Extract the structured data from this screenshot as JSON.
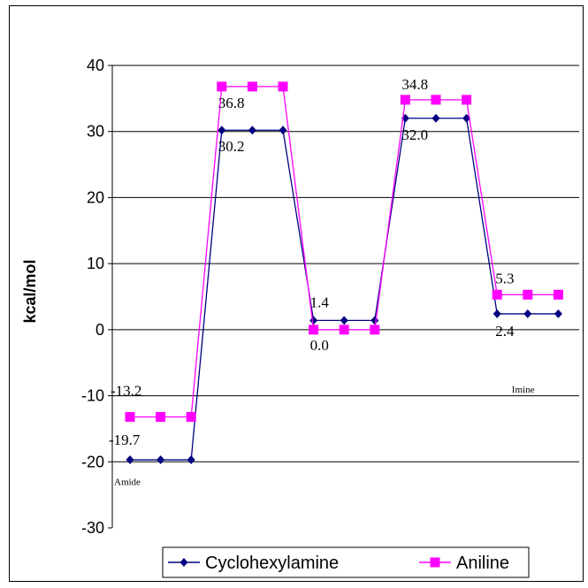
{
  "chart_data": {
    "type": "line",
    "title": "",
    "xlabel": "",
    "ylabel": "kcal/mol",
    "ylim": [
      -30,
      40
    ],
    "yticks": [
      40,
      30,
      20,
      10,
      0,
      -10,
      -20,
      -30
    ],
    "grid": true,
    "legend_position": "bottom",
    "x": [
      1,
      2,
      3,
      4,
      5,
      6,
      7,
      8,
      9,
      10,
      11,
      12,
      13,
      14,
      15
    ],
    "series": [
      {
        "name": "Cyclohexylamine",
        "color": "#000080",
        "marker": "diamond",
        "values": [
          -19.7,
          -19.7,
          -19.7,
          30.2,
          30.2,
          30.2,
          1.4,
          1.4,
          1.4,
          32.0,
          32.0,
          32.0,
          2.4,
          2.4,
          2.4
        ]
      },
      {
        "name": "Aniline",
        "color": "#ff00ff",
        "marker": "square",
        "values": [
          -13.2,
          -13.2,
          -13.2,
          36.8,
          36.8,
          36.8,
          0.0,
          0.0,
          0.0,
          34.8,
          34.8,
          34.8,
          5.3,
          5.3,
          5.3
        ]
      }
    ],
    "data_labels": [
      {
        "text": "-13.2",
        "x": 1,
        "y": -13.2,
        "series": "Aniline"
      },
      {
        "text": "-19.7",
        "x": 1,
        "y": -19.7,
        "series": "Cyclohexylamine"
      },
      {
        "text": "36.8",
        "x": 4,
        "y": 36.8,
        "series": "Aniline"
      },
      {
        "text": "30.2",
        "x": 4,
        "y": 30.2,
        "series": "Cyclohexylamine"
      },
      {
        "text": "1.4",
        "x": 7,
        "y": 1.4,
        "series": "Cyclohexylamine"
      },
      {
        "text": "0.0",
        "x": 7,
        "y": 0.0,
        "series": "Aniline"
      },
      {
        "text": "34.8",
        "x": 10,
        "y": 34.8,
        "series": "Aniline"
      },
      {
        "text": "32.0",
        "x": 10,
        "y": 32.0,
        "series": "Cyclohexylamine"
      },
      {
        "text": "5.3",
        "x": 13,
        "y": 5.3,
        "series": "Aniline"
      },
      {
        "text": "2.4",
        "x": 13,
        "y": 2.4,
        "series": "Cyclohexylamine"
      }
    ],
    "annotations": [
      {
        "text": "Amide",
        "x": 1,
        "y": -23.5
      },
      {
        "text": "Imine",
        "x": 14,
        "y": -9.5
      }
    ]
  }
}
